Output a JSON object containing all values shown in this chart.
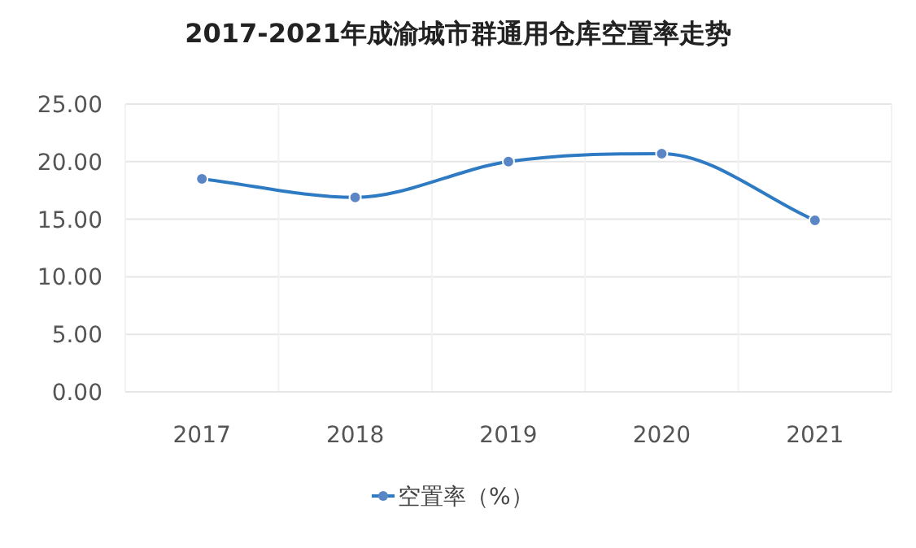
{
  "chart_data": {
    "type": "line",
    "title": "2017-2021年成渝城市群通用仓库空置率走势",
    "categories": [
      "2017",
      "2018",
      "2019",
      "2020",
      "2021"
    ],
    "series": [
      {
        "name": "空置率（%）",
        "color": "#2e7bc4",
        "values": [
          18.5,
          16.9,
          20.0,
          20.7,
          14.9
        ]
      }
    ],
    "ylim": [
      0,
      25
    ],
    "yticks": [
      {
        "value": 0,
        "label": "0.00"
      },
      {
        "value": 5,
        "label": "5.00"
      },
      {
        "value": 10,
        "label": "10.00"
      },
      {
        "value": 15,
        "label": "15.00"
      },
      {
        "value": 20,
        "label": "20.00"
      },
      {
        "value": 25,
        "label": "25.00"
      }
    ],
    "grid": true,
    "legend": "bottom",
    "marker": "circle",
    "line_style": "solid"
  }
}
